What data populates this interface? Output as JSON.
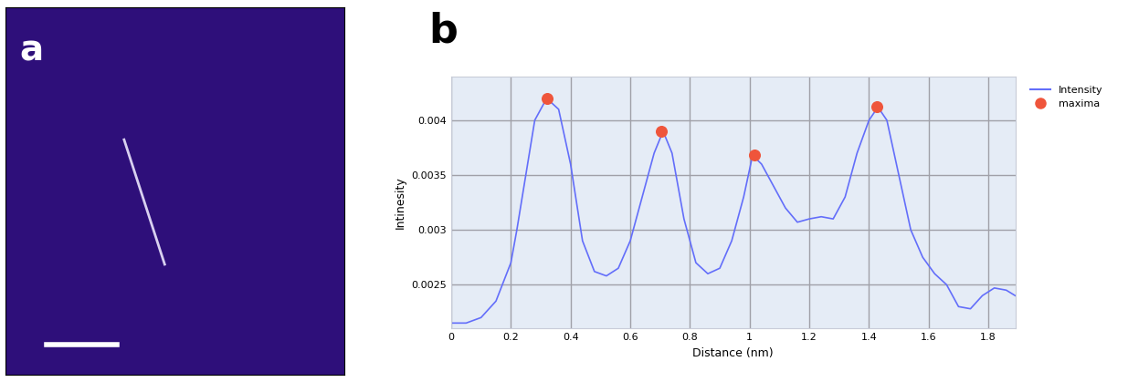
{
  "panel_labels": [
    "a",
    "b"
  ],
  "chart_data": {
    "type": "line",
    "x_label": "Distance (nm)",
    "y_label": "Intinesity",
    "xlim": [
      0,
      1.89
    ],
    "ylim": [
      0.0021,
      0.0044
    ],
    "xticks": [
      0,
      0.2,
      0.4,
      0.6,
      0.8,
      1,
      1.2,
      1.4,
      1.6,
      1.8
    ],
    "yticks": [
      0.0025,
      0.003,
      0.0035,
      0.004
    ],
    "grid": true,
    "legend": "upper left",
    "series": [
      {
        "name": "Intensity",
        "type": "line",
        "color": "#636efa",
        "line_style": "solid",
        "x": [
          0,
          0.05,
          0.1,
          0.15,
          0.2,
          0.22,
          0.25,
          0.28,
          0.32,
          0.36,
          0.4,
          0.44,
          0.48,
          0.52,
          0.56,
          0.6,
          0.64,
          0.68,
          0.71,
          0.74,
          0.78,
          0.82,
          0.86,
          0.9,
          0.94,
          0.98,
          1.01,
          1.04,
          1.08,
          1.12,
          1.16,
          1.2,
          1.24,
          1.28,
          1.32,
          1.36,
          1.4,
          1.43,
          1.46,
          1.5,
          1.54,
          1.58,
          1.62,
          1.66,
          1.7,
          1.74,
          1.78,
          1.82,
          1.86,
          1.89
        ],
        "values": [
          0.00215,
          0.00215,
          0.0022,
          0.00235,
          0.0027,
          0.003,
          0.0035,
          0.004,
          0.0042,
          0.0041,
          0.0036,
          0.0029,
          0.00262,
          0.00258,
          0.00265,
          0.0029,
          0.0033,
          0.0037,
          0.0039,
          0.0037,
          0.0031,
          0.0027,
          0.0026,
          0.00265,
          0.0029,
          0.0033,
          0.00368,
          0.0036,
          0.0034,
          0.0032,
          0.00307,
          0.0031,
          0.00312,
          0.0031,
          0.0033,
          0.0037,
          0.004,
          0.00412,
          0.004,
          0.0035,
          0.003,
          0.00275,
          0.0026,
          0.0025,
          0.0023,
          0.00228,
          0.0024,
          0.00247,
          0.00245,
          0.0024
        ]
      },
      {
        "name": "maxima",
        "type": "scatter",
        "color": "#ef553b",
        "marker": "circle",
        "x": [
          0.32,
          0.705,
          1.015,
          1.425
        ],
        "values": [
          0.0042,
          0.0039,
          0.00368,
          0.00412
        ]
      }
    ]
  }
}
